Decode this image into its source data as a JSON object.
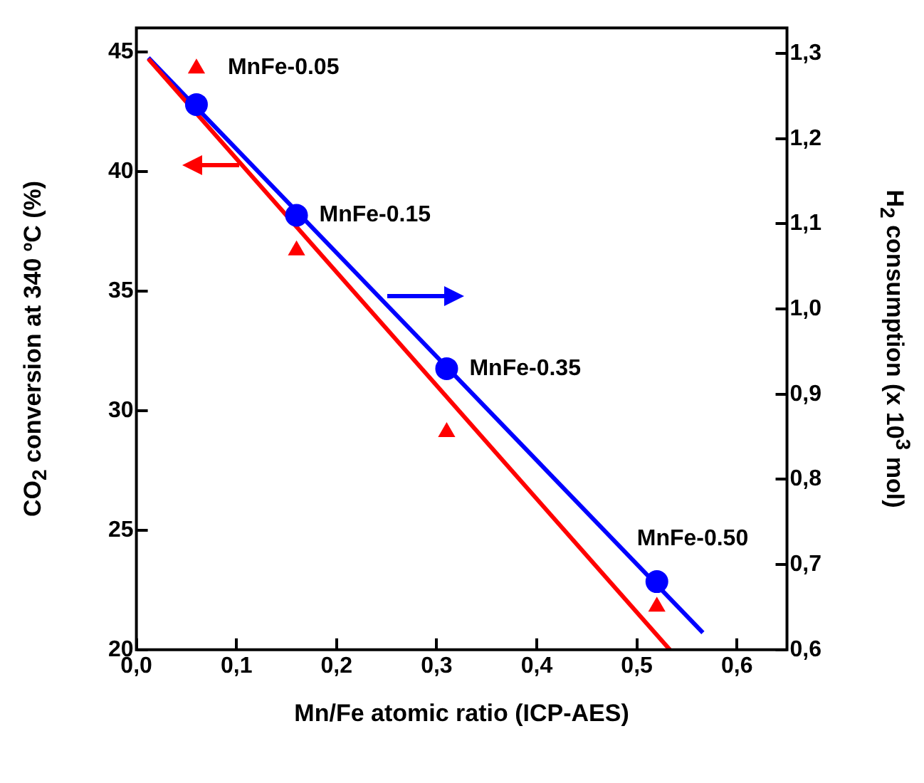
{
  "chart_data": {
    "type": "scatter",
    "xlabel": "Mn/Fe atomic ratio (ICP-AES)",
    "ylabel": "CO$_{2}$ conversion at 340 ºC (%)",
    "y2label": "H$_{2}$ consumption (x 10$^{3}$ mol)",
    "xlim": [
      0,
      0.65
    ],
    "xticks": [
      {
        "value": 0,
        "label": "0,0"
      },
      {
        "value": 0.1,
        "label": "0,1"
      },
      {
        "value": 0.2,
        "label": "0,2"
      },
      {
        "value": 0.3,
        "label": "0,3"
      },
      {
        "value": 0.4,
        "label": "0,4"
      },
      {
        "value": 0.5,
        "label": "0,5"
      },
      {
        "value": 0.6,
        "label": "0,6"
      }
    ],
    "ylim": [
      20,
      46
    ],
    "yticks": [
      20,
      25,
      30,
      35,
      40,
      45
    ],
    "y2lim": [
      0.6,
      1.33
    ],
    "y2ticks": [
      {
        "value": 0.6,
        "label": "0,6"
      },
      {
        "value": 0.7,
        "label": "0,7"
      },
      {
        "value": 0.8,
        "label": "0,8"
      },
      {
        "value": 0.9,
        "label": "0,9"
      },
      {
        "value": 1.0,
        "label": "1,0"
      },
      {
        "value": 1.1,
        "label": "1,1"
      },
      {
        "value": 1.2,
        "label": "1,2"
      },
      {
        "value": 1.3,
        "label": "1,3"
      }
    ],
    "legend": false,
    "series": [
      {
        "type": "scatter",
        "color": "#ff0000",
        "marker": "triangle",
        "x": [
          0.06,
          0.16,
          0.31,
          0.52
        ],
        "values": [
          44.3,
          36.7,
          29.1,
          21.8
        ]
      },
      {
        "type": "line",
        "color": "#ff0000",
        "marker": "none",
        "x": [
          0.012,
          0.533
        ],
        "values": [
          44.7,
          20
        ]
      },
      {
        "type": "scatter",
        "color": "#0000ff",
        "marker": "circle",
        "axis": "y2",
        "x": [
          0.06,
          0.16,
          0.31,
          0.52
        ],
        "values": [
          1.24,
          1.11,
          0.93,
          0.68
        ]
      },
      {
        "type": "line",
        "color": "#0000ff",
        "marker": "none",
        "axis": "y2",
        "x": [
          0.012,
          0.566
        ],
        "values": [
          1.295,
          0.62
        ]
      }
    ],
    "annotations": [
      "MnFe-0.05",
      "MnFe-0.15",
      "MnFe-0.35",
      "MnFe-0.50"
    ]
  }
}
